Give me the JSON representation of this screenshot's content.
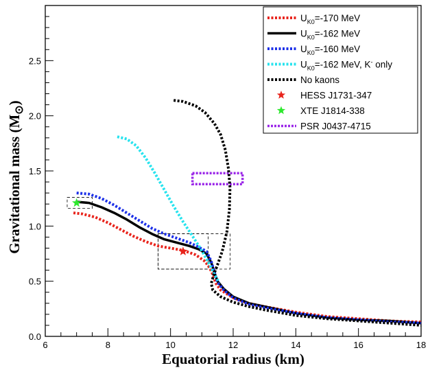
{
  "chart_data": {
    "type": "line",
    "xlabel": "Equatorial radius (km)",
    "ylabel": "Gravitational mass (M",
    "ylabel_symbol": "⊙",
    "xlim": [
      6,
      18
    ],
    "ylim": [
      0,
      3
    ],
    "xticks": [
      6,
      8,
      10,
      12,
      14,
      16,
      18
    ],
    "yticks": [
      0.0,
      0.5,
      1.0,
      1.5,
      2.0,
      2.5
    ],
    "xtick_labels": [
      "6",
      "8",
      "10",
      "12",
      "14",
      "16",
      "18"
    ],
    "ytick_labels": [
      "0.0",
      "0.5",
      "1.0",
      "1.5",
      "2.0",
      "2.5"
    ],
    "grid": false,
    "legend_position": "top-right",
    "series": [
      {
        "name": "U",
        "name_sub": "K0",
        "name_rest": "=-170 MeV",
        "color": "#e8241c",
        "style": "dotted",
        "points": [
          [
            6.9,
            1.12
          ],
          [
            7.2,
            1.11
          ],
          [
            7.6,
            1.08
          ],
          [
            8.0,
            1.03
          ],
          [
            8.4,
            0.97
          ],
          [
            8.8,
            0.91
          ],
          [
            9.2,
            0.86
          ],
          [
            9.6,
            0.82
          ],
          [
            10.0,
            0.8
          ],
          [
            10.4,
            0.78
          ],
          [
            10.8,
            0.74
          ],
          [
            11.1,
            0.68
          ],
          [
            11.25,
            0.62
          ],
          [
            11.35,
            0.56
          ],
          [
            11.45,
            0.48
          ],
          [
            11.6,
            0.42
          ],
          [
            12.0,
            0.35
          ],
          [
            12.5,
            0.3
          ],
          [
            13.0,
            0.27
          ],
          [
            14.0,
            0.22
          ],
          [
            15.0,
            0.18
          ],
          [
            16.0,
            0.16
          ],
          [
            17.0,
            0.14
          ],
          [
            18.0,
            0.13
          ]
        ]
      },
      {
        "name": "U",
        "name_sub": "K0",
        "name_rest": "=-162 MeV",
        "color": "#000000",
        "style": "solid",
        "points": [
          [
            7.0,
            1.22
          ],
          [
            7.4,
            1.21
          ],
          [
            7.8,
            1.17
          ],
          [
            8.2,
            1.12
          ],
          [
            8.6,
            1.06
          ],
          [
            9.0,
            0.99
          ],
          [
            9.4,
            0.93
          ],
          [
            9.8,
            0.88
          ],
          [
            10.2,
            0.85
          ],
          [
            10.6,
            0.82
          ],
          [
            10.9,
            0.79
          ],
          [
            11.15,
            0.75
          ],
          [
            11.3,
            0.67
          ],
          [
            11.4,
            0.58
          ],
          [
            11.5,
            0.5
          ],
          [
            11.7,
            0.43
          ],
          [
            12.0,
            0.36
          ],
          [
            12.5,
            0.3
          ],
          [
            13.0,
            0.27
          ],
          [
            14.0,
            0.21
          ],
          [
            15.0,
            0.17
          ],
          [
            16.0,
            0.15
          ],
          [
            17.0,
            0.14
          ],
          [
            18.0,
            0.12
          ]
        ]
      },
      {
        "name": "U",
        "name_sub": "K0",
        "name_rest": "=-160 MeV",
        "color": "#1c30e8",
        "style": "dotted",
        "points": [
          [
            7.0,
            1.3
          ],
          [
            7.4,
            1.29
          ],
          [
            7.8,
            1.25
          ],
          [
            8.2,
            1.19
          ],
          [
            8.6,
            1.12
          ],
          [
            9.0,
            1.05
          ],
          [
            9.4,
            0.98
          ],
          [
            9.8,
            0.93
          ],
          [
            10.2,
            0.89
          ],
          [
            10.6,
            0.85
          ],
          [
            10.9,
            0.81
          ],
          [
            11.15,
            0.77
          ],
          [
            11.3,
            0.68
          ],
          [
            11.4,
            0.58
          ],
          [
            11.5,
            0.49
          ],
          [
            11.7,
            0.42
          ],
          [
            12.0,
            0.35
          ],
          [
            12.5,
            0.29
          ],
          [
            13.0,
            0.26
          ],
          [
            14.0,
            0.21
          ],
          [
            15.0,
            0.17
          ],
          [
            16.0,
            0.15
          ],
          [
            17.0,
            0.13
          ],
          [
            18.0,
            0.12
          ]
        ]
      },
      {
        "name": "U",
        "name_sub": "K0",
        "name_rest": "=-162 MeV, K",
        "name_sup": "-",
        "name_tail": " only",
        "color": "#27e3ee",
        "style": "dotted",
        "points": [
          [
            8.3,
            1.81
          ],
          [
            8.6,
            1.79
          ],
          [
            8.9,
            1.73
          ],
          [
            9.2,
            1.62
          ],
          [
            9.5,
            1.48
          ],
          [
            9.8,
            1.33
          ],
          [
            10.1,
            1.18
          ],
          [
            10.4,
            1.04
          ],
          [
            10.7,
            0.91
          ],
          [
            10.95,
            0.8
          ],
          [
            11.15,
            0.7
          ],
          [
            11.3,
            0.62
          ],
          [
            11.4,
            0.56
          ],
          [
            11.55,
            0.49
          ]
        ]
      },
      {
        "name": "No kaons",
        "color": "#000000",
        "style": "dotted",
        "points": [
          [
            10.1,
            2.14
          ],
          [
            10.4,
            2.13
          ],
          [
            10.8,
            2.09
          ],
          [
            11.1,
            2.03
          ],
          [
            11.4,
            1.93
          ],
          [
            11.6,
            1.83
          ],
          [
            11.75,
            1.69
          ],
          [
            11.85,
            1.52
          ],
          [
            11.9,
            1.35
          ],
          [
            11.88,
            1.15
          ],
          [
            11.8,
            0.95
          ],
          [
            11.65,
            0.77
          ],
          [
            11.5,
            0.65
          ],
          [
            11.38,
            0.56
          ],
          [
            11.3,
            0.48
          ],
          [
            11.35,
            0.42
          ],
          [
            11.6,
            0.36
          ],
          [
            12.0,
            0.31
          ],
          [
            12.5,
            0.27
          ],
          [
            13.0,
            0.24
          ],
          [
            14.0,
            0.19
          ],
          [
            15.0,
            0.16
          ],
          [
            16.0,
            0.14
          ],
          [
            17.0,
            0.12
          ],
          [
            18.0,
            0.1
          ]
        ]
      }
    ],
    "markers": [
      {
        "name": "HESS J1731-347",
        "x": 10.4,
        "y": 0.77,
        "color": "#e8241c",
        "shape": "star",
        "box": {
          "x0": 9.6,
          "x1": 11.2,
          "y0": 0.61,
          "y1": 0.93
        }
      },
      {
        "name": "XTE J1814-338",
        "x": 7.0,
        "y": 1.21,
        "color": "#2ee82e",
        "shape": "star",
        "box": {
          "x0": 6.7,
          "x1": 7.5,
          "y0": 1.16,
          "y1": 1.26
        }
      }
    ],
    "regions": [
      {
        "name": "PSR J0437-4715",
        "x0": 10.7,
        "x1": 12.3,
        "y0": 1.38,
        "y1": 1.48,
        "color": "#9b27e8",
        "style": "dotted"
      },
      {
        "name": "",
        "x0": 9.6,
        "x1": 11.9,
        "y0": 0.61,
        "y1": 0.93,
        "color": "#000000",
        "style": "dashed-thin"
      }
    ]
  }
}
